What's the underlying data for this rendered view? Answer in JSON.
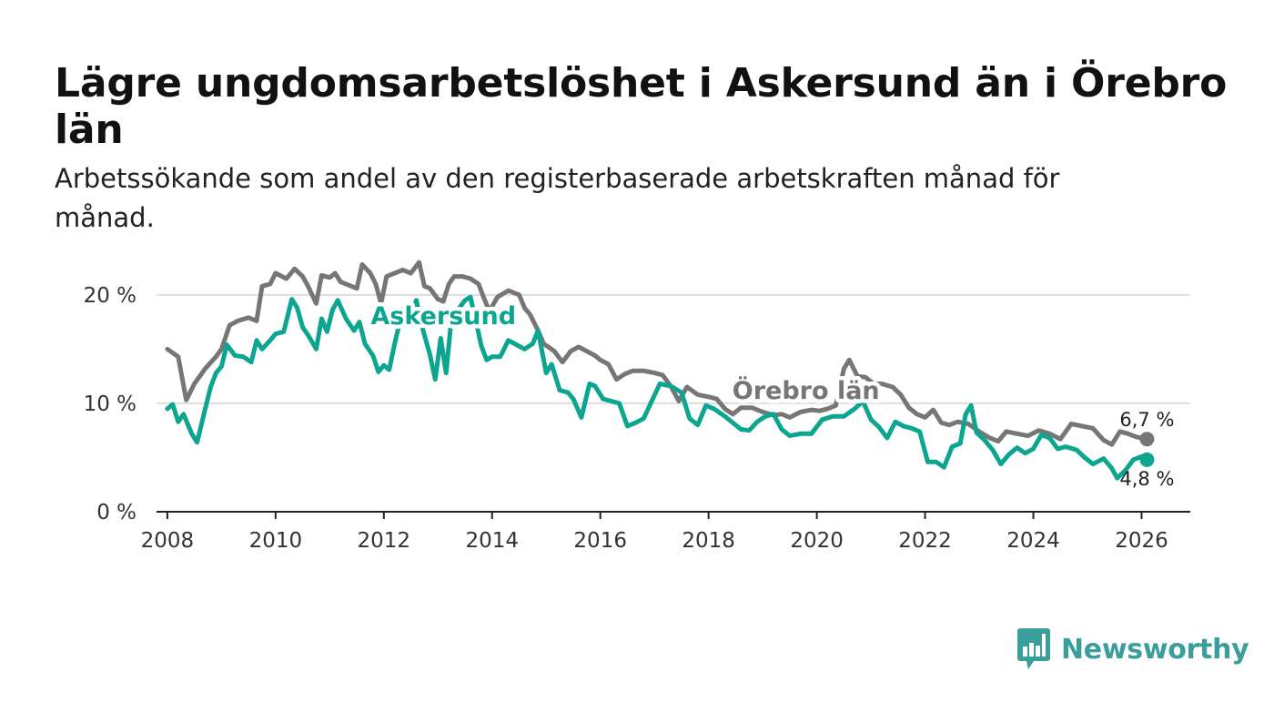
{
  "title": "Lägre ungdomsarbetslöshet i Askersund än i Örebro län",
  "subtitle": "Arbetssökande som andel av den registerbaserade arbetskraften månad för månad.",
  "brand": {
    "name": "Newsworthy",
    "icon": "newsworthy-logo-icon",
    "color": "#3a9e9a"
  },
  "chart_data": {
    "type": "line",
    "title": "Lägre ungdomsarbetslöshet i Askersund än i Örebro län",
    "xlabel": "",
    "ylabel": "",
    "xlim": [
      2007.8,
      2026.9
    ],
    "ylim": [
      0,
      22
    ],
    "grid": true,
    "x_ticks": [
      2008,
      2010,
      2012,
      2014,
      2016,
      2018,
      2020,
      2022,
      2024,
      2026
    ],
    "x_tick_labels": [
      "2008",
      "2010",
      "2012",
      "2014",
      "2016",
      "2018",
      "2020",
      "2022",
      "2024",
      "2026"
    ],
    "y_ticks": [
      0,
      10,
      20
    ],
    "y_tick_labels": [
      "0 %",
      "10 %",
      "20 %"
    ],
    "series": [
      {
        "name": "Örebro län",
        "color": "#767676",
        "end_label": "6,7 %",
        "points": [
          [
            2008.0,
            15.0
          ],
          [
            2008.2,
            14.3
          ],
          [
            2008.35,
            10.3
          ],
          [
            2008.5,
            11.8
          ],
          [
            2008.7,
            13.2
          ],
          [
            2008.9,
            14.3
          ],
          [
            2009.0,
            15.0
          ],
          [
            2009.15,
            17.2
          ],
          [
            2009.3,
            17.6
          ],
          [
            2009.5,
            17.9
          ],
          [
            2009.65,
            17.6
          ],
          [
            2009.75,
            20.8
          ],
          [
            2009.9,
            21.0
          ],
          [
            2010.0,
            22.0
          ],
          [
            2010.2,
            21.5
          ],
          [
            2010.35,
            22.4
          ],
          [
            2010.5,
            21.7
          ],
          [
            2010.6,
            20.8
          ],
          [
            2010.75,
            19.2
          ],
          [
            2010.85,
            21.8
          ],
          [
            2011.0,
            21.6
          ],
          [
            2011.1,
            22.0
          ],
          [
            2011.2,
            21.2
          ],
          [
            2011.4,
            20.8
          ],
          [
            2011.5,
            20.6
          ],
          [
            2011.6,
            22.8
          ],
          [
            2011.75,
            22.0
          ],
          [
            2011.85,
            21.0
          ],
          [
            2011.95,
            19.2
          ],
          [
            2012.05,
            21.7
          ],
          [
            2012.2,
            22.0
          ],
          [
            2012.35,
            22.3
          ],
          [
            2012.5,
            22.0
          ],
          [
            2012.65,
            23.0
          ],
          [
            2012.75,
            20.8
          ],
          [
            2012.85,
            20.6
          ],
          [
            2013.0,
            19.6
          ],
          [
            2013.1,
            19.4
          ],
          [
            2013.2,
            21.0
          ],
          [
            2013.3,
            21.7
          ],
          [
            2013.45,
            21.7
          ],
          [
            2013.6,
            21.5
          ],
          [
            2013.75,
            21.0
          ],
          [
            2013.85,
            19.7
          ],
          [
            2013.95,
            18.5
          ],
          [
            2014.1,
            19.8
          ],
          [
            2014.3,
            20.4
          ],
          [
            2014.5,
            20.0
          ],
          [
            2014.6,
            18.8
          ],
          [
            2014.7,
            18.2
          ],
          [
            2014.85,
            16.7
          ],
          [
            2014.95,
            15.5
          ],
          [
            2015.15,
            14.8
          ],
          [
            2015.3,
            13.8
          ],
          [
            2015.45,
            14.8
          ],
          [
            2015.6,
            15.2
          ],
          [
            2015.75,
            14.8
          ],
          [
            2015.9,
            14.4
          ],
          [
            2016.0,
            14.0
          ],
          [
            2016.15,
            13.6
          ],
          [
            2016.3,
            12.2
          ],
          [
            2016.45,
            12.7
          ],
          [
            2016.6,
            13.0
          ],
          [
            2016.8,
            13.0
          ],
          [
            2017.0,
            12.8
          ],
          [
            2017.15,
            12.6
          ],
          [
            2017.3,
            11.6
          ],
          [
            2017.45,
            10.2
          ],
          [
            2017.6,
            11.5
          ],
          [
            2017.8,
            10.8
          ],
          [
            2018.0,
            10.6
          ],
          [
            2018.15,
            10.4
          ],
          [
            2018.3,
            9.5
          ],
          [
            2018.45,
            9.0
          ],
          [
            2018.6,
            9.6
          ],
          [
            2018.8,
            9.6
          ],
          [
            2019.0,
            9.2
          ],
          [
            2019.2,
            8.9
          ],
          [
            2019.35,
            9.0
          ],
          [
            2019.5,
            8.7
          ],
          [
            2019.7,
            9.2
          ],
          [
            2019.9,
            9.4
          ],
          [
            2020.05,
            9.3
          ],
          [
            2020.2,
            9.5
          ],
          [
            2020.35,
            9.8
          ],
          [
            2020.5,
            13.2
          ],
          [
            2020.6,
            14.0
          ],
          [
            2020.75,
            12.5
          ],
          [
            2020.9,
            12.4
          ],
          [
            2021.05,
            11.8
          ],
          [
            2021.2,
            11.8
          ],
          [
            2021.4,
            11.5
          ],
          [
            2021.55,
            10.8
          ],
          [
            2021.7,
            9.6
          ],
          [
            2021.85,
            9.0
          ],
          [
            2022.0,
            8.7
          ],
          [
            2022.15,
            9.4
          ],
          [
            2022.3,
            8.2
          ],
          [
            2022.45,
            8.0
          ],
          [
            2022.6,
            8.3
          ],
          [
            2022.8,
            8.1
          ],
          [
            2023.0,
            7.4
          ],
          [
            2023.2,
            6.8
          ],
          [
            2023.35,
            6.5
          ],
          [
            2023.5,
            7.4
          ],
          [
            2023.7,
            7.2
          ],
          [
            2023.9,
            7.0
          ],
          [
            2024.1,
            7.5
          ],
          [
            2024.3,
            7.2
          ],
          [
            2024.5,
            6.7
          ],
          [
            2024.7,
            8.1
          ],
          [
            2024.9,
            7.9
          ],
          [
            2025.1,
            7.7
          ],
          [
            2025.3,
            6.6
          ],
          [
            2025.45,
            6.2
          ],
          [
            2025.6,
            7.4
          ],
          [
            2025.75,
            7.2
          ],
          [
            2025.9,
            6.9
          ],
          [
            2026.1,
            6.7
          ]
        ]
      },
      {
        "name": "Askersund",
        "color": "#0ca590",
        "end_label": "4,8 %",
        "points": [
          [
            2008.0,
            9.5
          ],
          [
            2008.1,
            9.9
          ],
          [
            2008.2,
            8.3
          ],
          [
            2008.3,
            9.0
          ],
          [
            2008.45,
            7.2
          ],
          [
            2008.55,
            6.4
          ],
          [
            2008.7,
            9.5
          ],
          [
            2008.8,
            11.5
          ],
          [
            2008.9,
            12.8
          ],
          [
            2009.0,
            13.4
          ],
          [
            2009.1,
            15.4
          ],
          [
            2009.25,
            14.4
          ],
          [
            2009.4,
            14.3
          ],
          [
            2009.55,
            13.8
          ],
          [
            2009.65,
            15.8
          ],
          [
            2009.75,
            15.0
          ],
          [
            2009.9,
            15.8
          ],
          [
            2010.0,
            16.4
          ],
          [
            2010.15,
            16.6
          ],
          [
            2010.3,
            19.6
          ],
          [
            2010.4,
            18.8
          ],
          [
            2010.5,
            17.0
          ],
          [
            2010.6,
            16.3
          ],
          [
            2010.75,
            15.0
          ],
          [
            2010.85,
            17.8
          ],
          [
            2010.95,
            16.6
          ],
          [
            2011.05,
            18.6
          ],
          [
            2011.15,
            19.5
          ],
          [
            2011.3,
            17.8
          ],
          [
            2011.45,
            16.7
          ],
          [
            2011.55,
            17.5
          ],
          [
            2011.65,
            15.5
          ],
          [
            2011.8,
            14.4
          ],
          [
            2011.9,
            12.9
          ],
          [
            2012.0,
            13.5
          ],
          [
            2012.1,
            13.1
          ],
          [
            2012.2,
            15.5
          ],
          [
            2012.35,
            18.7
          ],
          [
            2012.45,
            17.5
          ],
          [
            2012.6,
            19.5
          ],
          [
            2012.7,
            17.2
          ],
          [
            2012.85,
            14.5
          ],
          [
            2012.95,
            12.2
          ],
          [
            2013.05,
            16.0
          ],
          [
            2013.15,
            12.8
          ],
          [
            2013.25,
            17.8
          ],
          [
            2013.35,
            18.5
          ],
          [
            2013.5,
            19.5
          ],
          [
            2013.6,
            19.8
          ],
          [
            2013.7,
            17.6
          ],
          [
            2013.8,
            15.3
          ],
          [
            2013.9,
            14.0
          ],
          [
            2014.0,
            14.3
          ],
          [
            2014.15,
            14.3
          ],
          [
            2014.3,
            15.8
          ],
          [
            2014.45,
            15.4
          ],
          [
            2014.6,
            15.0
          ],
          [
            2014.75,
            15.5
          ],
          [
            2014.85,
            16.7
          ],
          [
            2015.0,
            12.8
          ],
          [
            2015.1,
            13.6
          ],
          [
            2015.25,
            11.2
          ],
          [
            2015.4,
            11.0
          ],
          [
            2015.5,
            10.4
          ],
          [
            2015.65,
            8.7
          ],
          [
            2015.8,
            11.8
          ],
          [
            2015.9,
            11.6
          ],
          [
            2016.05,
            10.4
          ],
          [
            2016.2,
            10.2
          ],
          [
            2016.35,
            10.0
          ],
          [
            2016.5,
            7.9
          ],
          [
            2016.65,
            8.2
          ],
          [
            2016.8,
            8.6
          ],
          [
            2016.95,
            10.2
          ],
          [
            2017.1,
            11.8
          ],
          [
            2017.3,
            11.6
          ],
          [
            2017.5,
            11.0
          ],
          [
            2017.65,
            8.6
          ],
          [
            2017.8,
            8.0
          ],
          [
            2017.95,
            9.8
          ],
          [
            2018.1,
            9.5
          ],
          [
            2018.3,
            8.8
          ],
          [
            2018.45,
            8.2
          ],
          [
            2018.6,
            7.6
          ],
          [
            2018.75,
            7.5
          ],
          [
            2018.9,
            8.3
          ],
          [
            2019.05,
            8.8
          ],
          [
            2019.2,
            9.0
          ],
          [
            2019.35,
            7.6
          ],
          [
            2019.5,
            7.0
          ],
          [
            2019.7,
            7.2
          ],
          [
            2019.9,
            7.2
          ],
          [
            2020.1,
            8.5
          ],
          [
            2020.3,
            8.8
          ],
          [
            2020.5,
            8.8
          ],
          [
            2020.7,
            9.5
          ],
          [
            2020.85,
            10.2
          ],
          [
            2021.0,
            8.5
          ],
          [
            2021.15,
            7.8
          ],
          [
            2021.3,
            6.8
          ],
          [
            2021.45,
            8.3
          ],
          [
            2021.6,
            7.9
          ],
          [
            2021.75,
            7.7
          ],
          [
            2021.9,
            7.4
          ],
          [
            2022.05,
            4.6
          ],
          [
            2022.2,
            4.6
          ],
          [
            2022.35,
            4.1
          ],
          [
            2022.5,
            6.0
          ],
          [
            2022.65,
            6.3
          ],
          [
            2022.75,
            9.0
          ],
          [
            2022.85,
            9.8
          ],
          [
            2022.95,
            7.3
          ],
          [
            2023.1,
            6.6
          ],
          [
            2023.25,
            5.7
          ],
          [
            2023.4,
            4.4
          ],
          [
            2023.55,
            5.3
          ],
          [
            2023.7,
            5.9
          ],
          [
            2023.85,
            5.4
          ],
          [
            2024.0,
            5.8
          ],
          [
            2024.15,
            7.1
          ],
          [
            2024.3,
            6.8
          ],
          [
            2024.45,
            5.8
          ],
          [
            2024.6,
            6.0
          ],
          [
            2024.8,
            5.7
          ],
          [
            2024.95,
            5.0
          ],
          [
            2025.1,
            4.4
          ],
          [
            2025.3,
            4.9
          ],
          [
            2025.45,
            4.0
          ],
          [
            2025.55,
            3.1
          ],
          [
            2025.7,
            3.8
          ],
          [
            2025.85,
            4.8
          ],
          [
            2026.0,
            5.1
          ],
          [
            2026.1,
            4.8
          ]
        ]
      }
    ],
    "annotations": [
      {
        "text": "Askersund",
        "series": "Askersund",
        "anchor_x": 2013.1,
        "anchor_y": 17.3
      },
      {
        "text": "Örebro län",
        "series": "Örebro län",
        "anchor_x": 2019.8,
        "anchor_y": 10.4
      }
    ]
  }
}
